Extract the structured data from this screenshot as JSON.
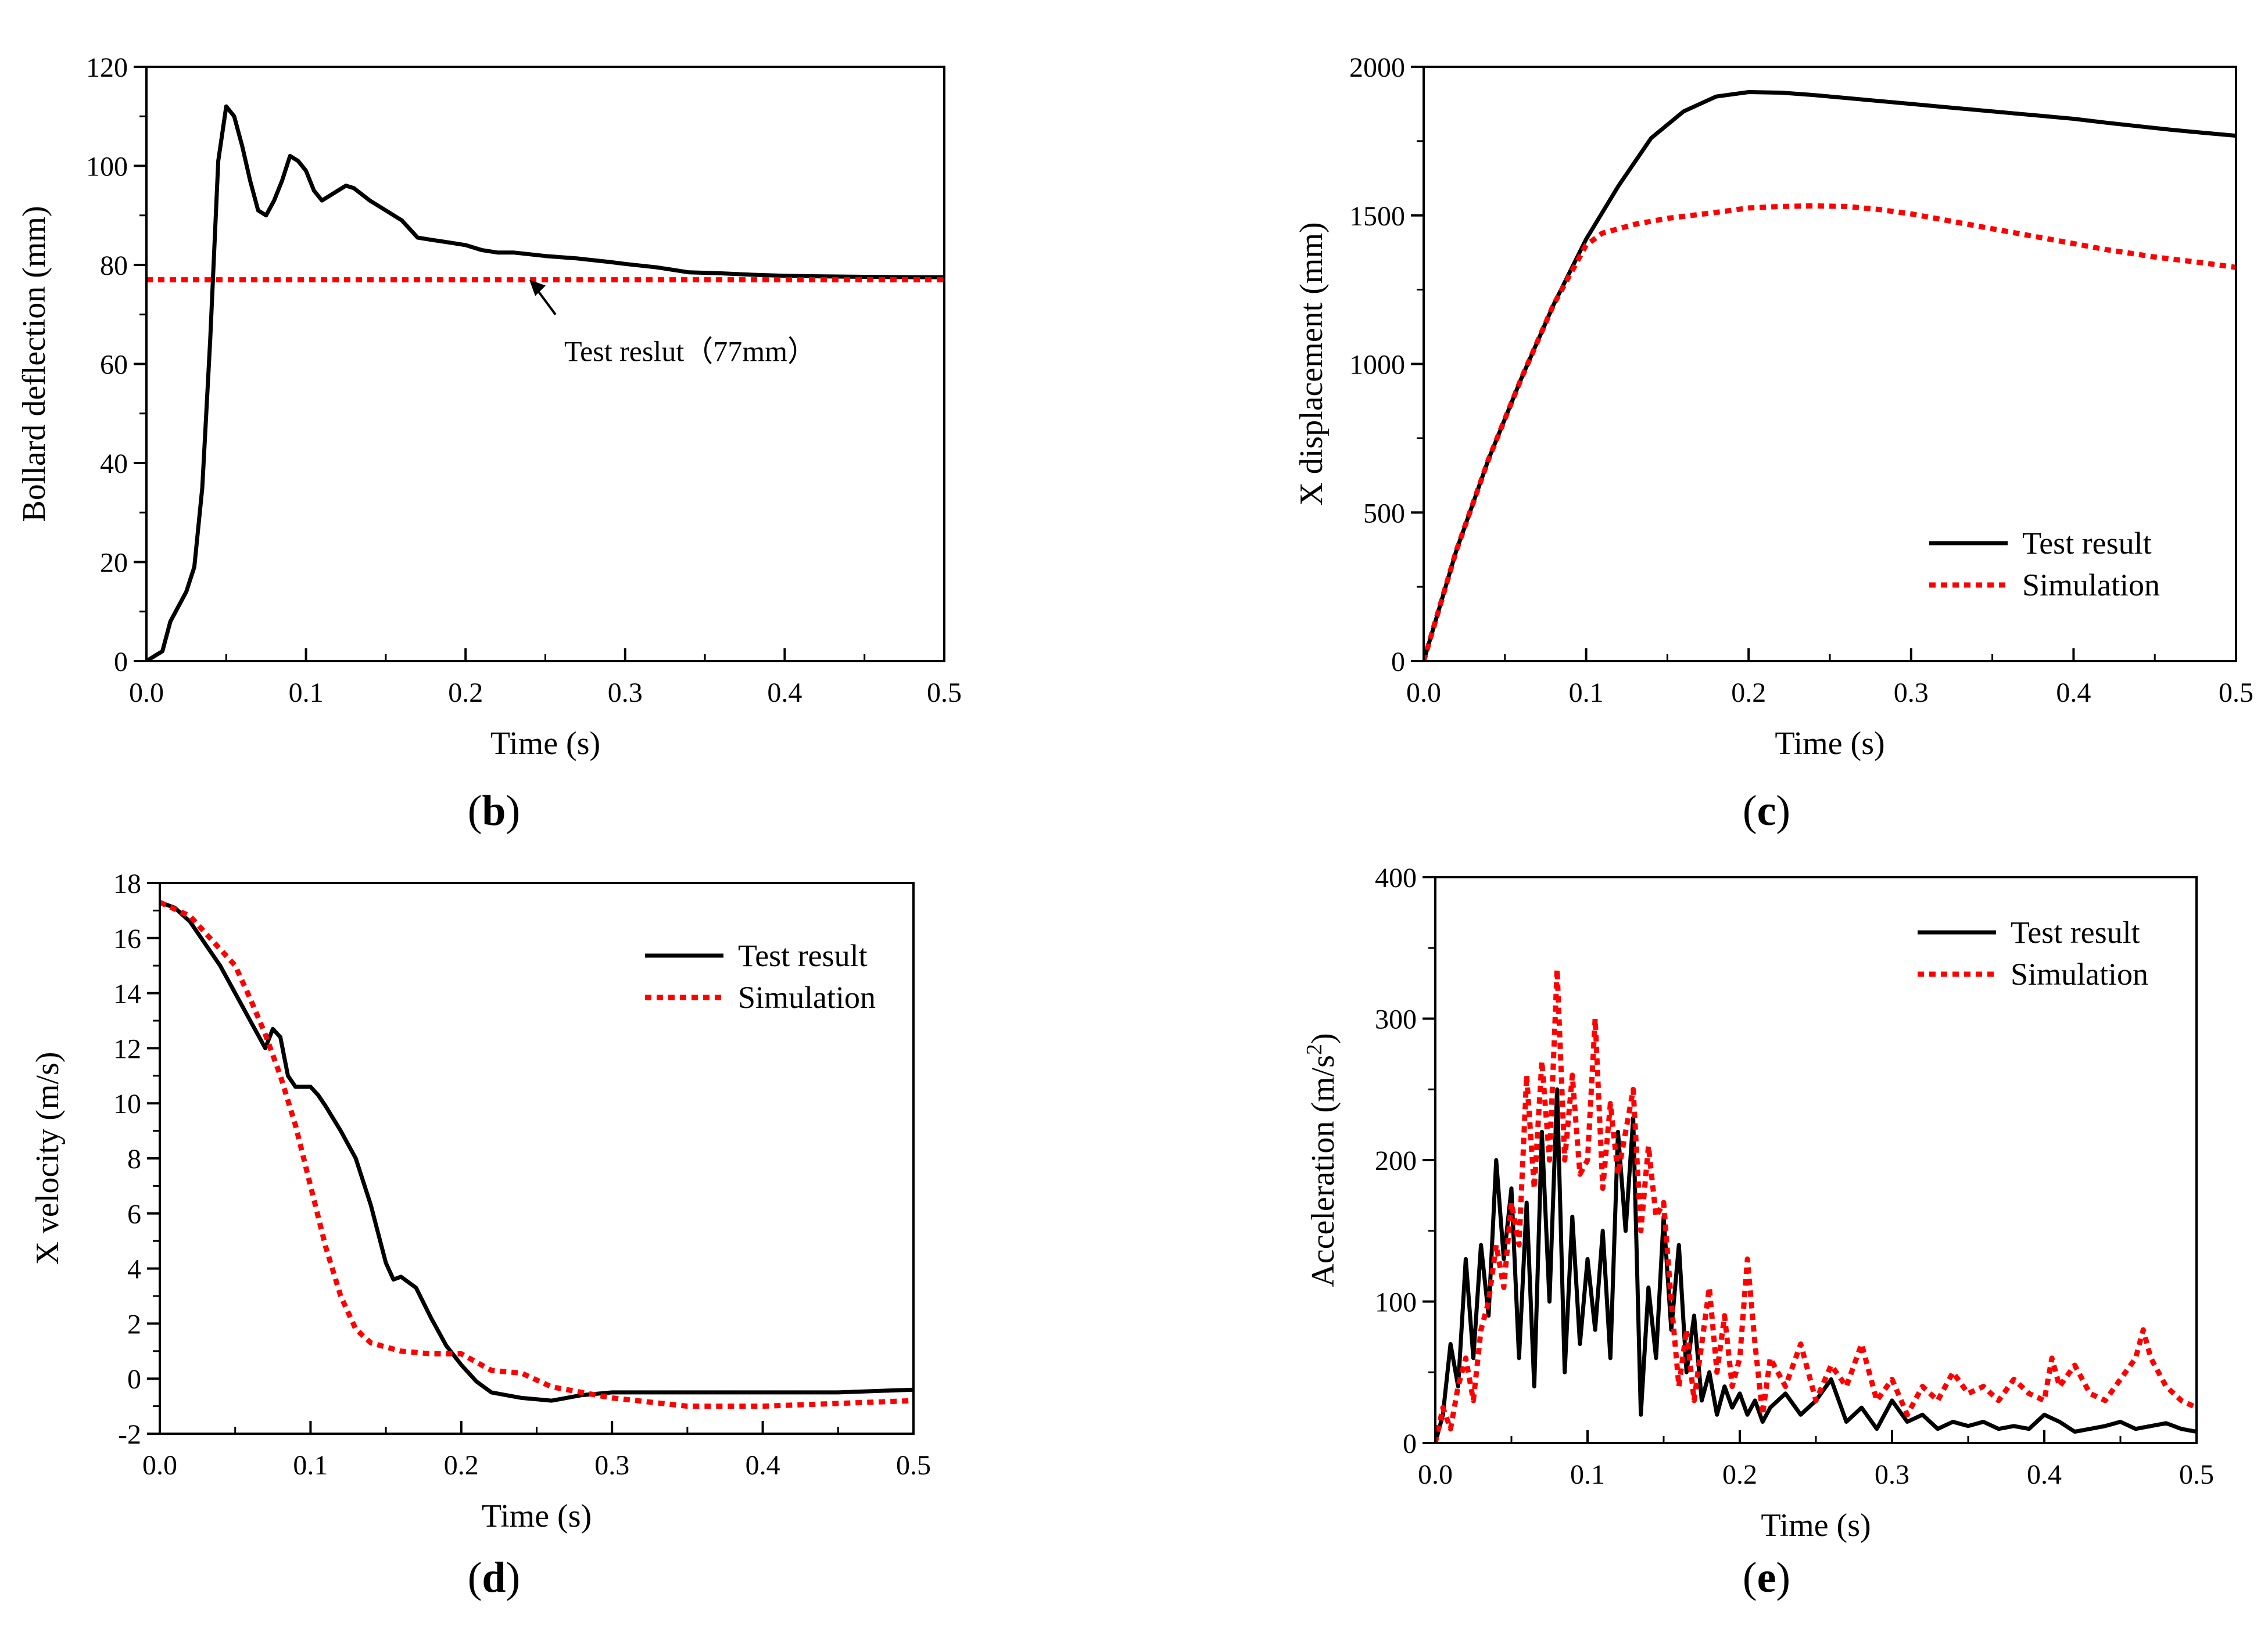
{
  "colors": {
    "test": "#000000",
    "simulation": "#ff0000"
  },
  "chart_data": [
    {
      "id": "b",
      "panel_label": "b",
      "type": "line",
      "xlabel": "Time (s)",
      "ylabel": "Bollard deflection (mm)",
      "xlim": [
        0,
        0.5
      ],
      "ylim": [
        0,
        120
      ],
      "xticks": [
        "0.0",
        "0.1",
        "0.2",
        "0.3",
        "0.4",
        "0.5"
      ],
      "yticks": [
        "0",
        "20",
        "40",
        "60",
        "80",
        "100",
        "120"
      ],
      "annotation": {
        "text": "Test reslut（77mm）",
        "x": 0.24,
        "y": 77
      },
      "series": [
        {
          "style": "solid",
          "color": "#000000",
          "x": [
            0,
            0.005,
            0.01,
            0.015,
            0.02,
            0.025,
            0.03,
            0.035,
            0.04,
            0.045,
            0.05,
            0.055,
            0.06,
            0.065,
            0.07,
            0.075,
            0.08,
            0.085,
            0.09,
            0.095,
            0.1,
            0.105,
            0.11,
            0.115,
            0.12,
            0.125,
            0.13,
            0.14,
            0.15,
            0.16,
            0.17,
            0.18,
            0.19,
            0.2,
            0.21,
            0.22,
            0.23,
            0.25,
            0.27,
            0.29,
            0.3,
            0.32,
            0.34,
            0.36,
            0.38,
            0.4,
            0.42,
            0.45,
            0.48,
            0.5
          ],
          "y": [
            0,
            1,
            2,
            8,
            11,
            14,
            19,
            35,
            65,
            101,
            112,
            110,
            104,
            97,
            91,
            90,
            93,
            97,
            102,
            101,
            99,
            95,
            93,
            94,
            95,
            96,
            95.5,
            93,
            91,
            89,
            85.5,
            85,
            84.5,
            84,
            83,
            82.5,
            82.5,
            81.8,
            81.3,
            80.6,
            80.2,
            79.5,
            78.5,
            78.3,
            78,
            77.8,
            77.7,
            77.6,
            77.5,
            77.5
          ]
        },
        {
          "style": "dotted",
          "color": "#ff0000",
          "x": [
            0,
            0.5
          ],
          "y": [
            77,
            77
          ]
        }
      ]
    },
    {
      "id": "c",
      "panel_label": "c",
      "type": "line",
      "xlabel": "Time (s)",
      "ylabel": "X displacement (mm)",
      "xlim": [
        0,
        0.5
      ],
      "ylim": [
        0,
        2000
      ],
      "xticks": [
        "0.0",
        "0.1",
        "0.2",
        "0.3",
        "0.4",
        "0.5"
      ],
      "yticks": [
        "0",
        "500",
        "1000",
        "1500",
        "2000"
      ],
      "legend": {
        "position": "lower-right",
        "entries": [
          {
            "label": "Test result",
            "style": "solid",
            "color": "#000000"
          },
          {
            "label": "Simulation",
            "style": "dotted",
            "color": "#ff0000"
          }
        ]
      },
      "series": [
        {
          "name": "Test result",
          "style": "solid",
          "color": "#000000",
          "x": [
            0,
            0.02,
            0.04,
            0.06,
            0.08,
            0.1,
            0.12,
            0.14,
            0.16,
            0.18,
            0.2,
            0.22,
            0.24,
            0.26,
            0.28,
            0.3,
            0.32,
            0.34,
            0.36,
            0.38,
            0.4,
            0.42,
            0.44,
            0.46,
            0.48,
            0.5
          ],
          "y": [
            0,
            370,
            680,
            950,
            1200,
            1420,
            1600,
            1760,
            1850,
            1900,
            1915,
            1913,
            1905,
            1895,
            1885,
            1875,
            1865,
            1855,
            1845,
            1835,
            1825,
            1812,
            1800,
            1788,
            1778,
            1768
          ]
        },
        {
          "name": "Simulation",
          "style": "dotted",
          "color": "#ff0000",
          "x": [
            0,
            0.02,
            0.04,
            0.06,
            0.08,
            0.1,
            0.11,
            0.13,
            0.15,
            0.18,
            0.2,
            0.22,
            0.24,
            0.26,
            0.28,
            0.3,
            0.32,
            0.35,
            0.38,
            0.4,
            0.42,
            0.45,
            0.48,
            0.5
          ],
          "y": [
            0,
            370,
            680,
            950,
            1200,
            1400,
            1440,
            1470,
            1490,
            1510,
            1525,
            1530,
            1532,
            1530,
            1520,
            1505,
            1485,
            1455,
            1425,
            1405,
            1385,
            1360,
            1340,
            1325
          ]
        }
      ]
    },
    {
      "id": "d",
      "panel_label": "d",
      "type": "line",
      "xlabel": "Time (s)",
      "ylabel": "X velocity (m/s)",
      "xlim": [
        0,
        0.5
      ],
      "ylim": [
        -2,
        18
      ],
      "xticks": [
        "0.0",
        "0.1",
        "0.2",
        "0.3",
        "0.4",
        "0.5"
      ],
      "yticks": [
        "-2",
        "0",
        "2",
        "4",
        "6",
        "8",
        "10",
        "12",
        "14",
        "16",
        "18"
      ],
      "legend": {
        "position": "top-right",
        "entries": [
          {
            "label": "Test result",
            "style": "solid",
            "color": "#000000"
          },
          {
            "label": "Simulation",
            "style": "dotted",
            "color": "#ff0000"
          }
        ]
      },
      "series": [
        {
          "name": "Test result",
          "style": "solid",
          "color": "#000000",
          "x": [
            0,
            0.01,
            0.02,
            0.03,
            0.04,
            0.05,
            0.06,
            0.07,
            0.075,
            0.08,
            0.085,
            0.09,
            0.1,
            0.105,
            0.11,
            0.12,
            0.13,
            0.14,
            0.15,
            0.155,
            0.16,
            0.17,
            0.18,
            0.19,
            0.2,
            0.21,
            0.22,
            0.24,
            0.26,
            0.28,
            0.3,
            0.35,
            0.4,
            0.45,
            0.5
          ],
          "y": [
            17.3,
            17.1,
            16.6,
            15.8,
            15.0,
            14.0,
            13.0,
            12.0,
            12.7,
            12.4,
            11.0,
            10.6,
            10.6,
            10.3,
            9.9,
            9.0,
            8.0,
            6.3,
            4.2,
            3.6,
            3.7,
            3.3,
            2.2,
            1.2,
            0.5,
            -0.1,
            -0.5,
            -0.7,
            -0.8,
            -0.6,
            -0.5,
            -0.5,
            -0.5,
            -0.5,
            -0.4
          ]
        },
        {
          "name": "Simulation",
          "style": "dotted",
          "color": "#ff0000",
          "x": [
            0,
            0.02,
            0.04,
            0.05,
            0.06,
            0.07,
            0.08,
            0.09,
            0.1,
            0.11,
            0.12,
            0.13,
            0.14,
            0.16,
            0.18,
            0.2,
            0.22,
            0.24,
            0.26,
            0.28,
            0.3,
            0.35,
            0.4,
            0.45,
            0.5
          ],
          "y": [
            17.3,
            16.8,
            15.6,
            15.0,
            13.8,
            12.5,
            11.0,
            9.2,
            7.0,
            4.8,
            3.0,
            1.8,
            1.3,
            1.0,
            0.9,
            0.9,
            0.3,
            0.2,
            -0.3,
            -0.5,
            -0.7,
            -1.0,
            -1.0,
            -0.9,
            -0.8
          ]
        }
      ]
    },
    {
      "id": "e",
      "panel_label": "e",
      "type": "line",
      "xlabel": "Time (s)",
      "ylabel": "Acceleration (m/s",
      "ylabel_sup": "2",
      "ylabel_tail": ")",
      "xlim": [
        0,
        0.5
      ],
      "ylim": [
        0,
        400
      ],
      "xticks": [
        "0.0",
        "0.1",
        "0.2",
        "0.3",
        "0.4",
        "0.5"
      ],
      "yticks": [
        "0",
        "100",
        "200",
        "300",
        "400"
      ],
      "legend": {
        "position": "top-right",
        "entries": [
          {
            "label": "Test result",
            "style": "solid",
            "color": "#000000"
          },
          {
            "label": "Simulation",
            "style": "dotted",
            "color": "#ff0000"
          }
        ]
      },
      "series": [
        {
          "name": "Test result",
          "style": "solid",
          "color": "#000000",
          "x": [
            0,
            0.005,
            0.01,
            0.015,
            0.02,
            0.025,
            0.03,
            0.035,
            0.04,
            0.045,
            0.05,
            0.055,
            0.06,
            0.065,
            0.07,
            0.075,
            0.08,
            0.085,
            0.09,
            0.095,
            0.1,
            0.105,
            0.11,
            0.115,
            0.12,
            0.125,
            0.13,
            0.135,
            0.14,
            0.145,
            0.15,
            0.155,
            0.16,
            0.165,
            0.17,
            0.175,
            0.18,
            0.185,
            0.19,
            0.195,
            0.2,
            0.205,
            0.21,
            0.215,
            0.22,
            0.23,
            0.24,
            0.25,
            0.26,
            0.27,
            0.28,
            0.29,
            0.3,
            0.31,
            0.32,
            0.33,
            0.34,
            0.35,
            0.36,
            0.37,
            0.38,
            0.39,
            0.4,
            0.41,
            0.42,
            0.43,
            0.44,
            0.45,
            0.46,
            0.47,
            0.48,
            0.49,
            0.5
          ],
          "y": [
            0,
            20,
            70,
            40,
            130,
            60,
            140,
            90,
            200,
            130,
            180,
            60,
            170,
            40,
            220,
            100,
            250,
            50,
            160,
            70,
            130,
            80,
            150,
            60,
            220,
            150,
            230,
            20,
            110,
            60,
            160,
            80,
            140,
            50,
            90,
            30,
            50,
            20,
            40,
            25,
            35,
            20,
            30,
            15,
            25,
            35,
            20,
            30,
            45,
            15,
            25,
            10,
            30,
            15,
            20,
            10,
            15,
            12,
            15,
            10,
            12,
            10,
            20,
            15,
            8,
            10,
            12,
            15,
            10,
            12,
            14,
            10,
            8
          ]
        },
        {
          "name": "Simulation",
          "style": "dotted",
          "color": "#ff0000",
          "x": [
            0,
            0.005,
            0.01,
            0.015,
            0.02,
            0.025,
            0.03,
            0.035,
            0.04,
            0.045,
            0.05,
            0.055,
            0.06,
            0.065,
            0.07,
            0.075,
            0.08,
            0.085,
            0.09,
            0.095,
            0.1,
            0.105,
            0.11,
            0.115,
            0.12,
            0.125,
            0.13,
            0.135,
            0.14,
            0.145,
            0.15,
            0.155,
            0.16,
            0.165,
            0.17,
            0.175,
            0.18,
            0.185,
            0.19,
            0.195,
            0.2,
            0.205,
            0.21,
            0.215,
            0.22,
            0.23,
            0.24,
            0.25,
            0.26,
            0.27,
            0.28,
            0.29,
            0.3,
            0.31,
            0.32,
            0.33,
            0.34,
            0.35,
            0.36,
            0.37,
            0.38,
            0.39,
            0.4,
            0.405,
            0.41,
            0.42,
            0.43,
            0.44,
            0.45,
            0.46,
            0.465,
            0.47,
            0.48,
            0.49,
            0.5
          ],
          "y": [
            0,
            25,
            10,
            40,
            60,
            30,
            80,
            100,
            140,
            110,
            170,
            140,
            260,
            180,
            270,
            200,
            335,
            200,
            260,
            190,
            200,
            300,
            180,
            240,
            190,
            220,
            250,
            150,
            210,
            160,
            170,
            100,
            40,
            80,
            30,
            70,
            110,
            50,
            90,
            40,
            60,
            130,
            70,
            20,
            60,
            40,
            70,
            30,
            55,
            40,
            70,
            30,
            45,
            20,
            40,
            30,
            50,
            35,
            40,
            30,
            45,
            35,
            30,
            60,
            40,
            55,
            35,
            30,
            45,
            60,
            80,
            60,
            40,
            30,
            25
          ]
        }
      ]
    }
  ]
}
